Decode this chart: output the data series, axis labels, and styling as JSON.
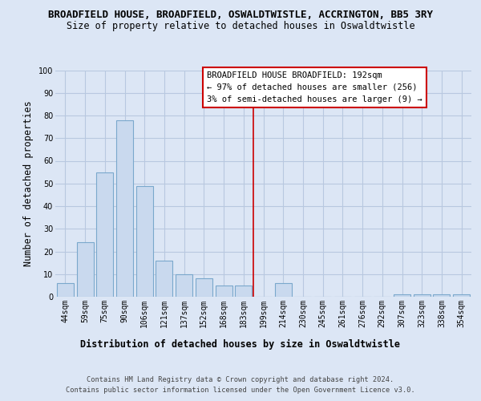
{
  "title": "BROADFIELD HOUSE, BROADFIELD, OSWALDTWISTLE, ACCRINGTON, BB5 3RY",
  "subtitle": "Size of property relative to detached houses in Oswaldtwistle",
  "xlabel": "Distribution of detached houses by size in Oswaldtwistle",
  "ylabel": "Number of detached properties",
  "bin_labels": [
    "44sqm",
    "59sqm",
    "75sqm",
    "90sqm",
    "106sqm",
    "121sqm",
    "137sqm",
    "152sqm",
    "168sqm",
    "183sqm",
    "199sqm",
    "214sqm",
    "230sqm",
    "245sqm",
    "261sqm",
    "276sqm",
    "292sqm",
    "307sqm",
    "323sqm",
    "338sqm",
    "354sqm"
  ],
  "bar_heights": [
    6,
    24,
    55,
    78,
    49,
    16,
    10,
    8,
    5,
    5,
    0,
    6,
    0,
    0,
    0,
    0,
    0,
    1,
    1,
    1,
    1
  ],
  "bar_color": "#c9d9ee",
  "bar_edge_color": "#7aa8cc",
  "highlight_line_color": "#cc0000",
  "highlight_line_index": 10,
  "ylim": [
    0,
    100
  ],
  "yticks": [
    0,
    10,
    20,
    30,
    40,
    50,
    60,
    70,
    80,
    90,
    100
  ],
  "annotation_lines": [
    "BROADFIELD HOUSE BROADFIELD: 192sqm",
    "← 97% of detached houses are smaller (256)",
    "3% of semi-detached houses are larger (9) →"
  ],
  "footer_lines": [
    "Contains HM Land Registry data © Crown copyright and database right 2024.",
    "Contains public sector information licensed under the Open Government Licence v3.0."
  ],
  "background_color": "#dce6f5",
  "plot_bg_color": "#dce6f5",
  "grid_color": "#b8c8e0",
  "title_fontsize": 9.0,
  "subtitle_fontsize": 8.5,
  "axis_label_fontsize": 8.5,
  "tick_fontsize": 7.0,
  "footer_fontsize": 6.2,
  "annotation_fontsize": 7.5
}
